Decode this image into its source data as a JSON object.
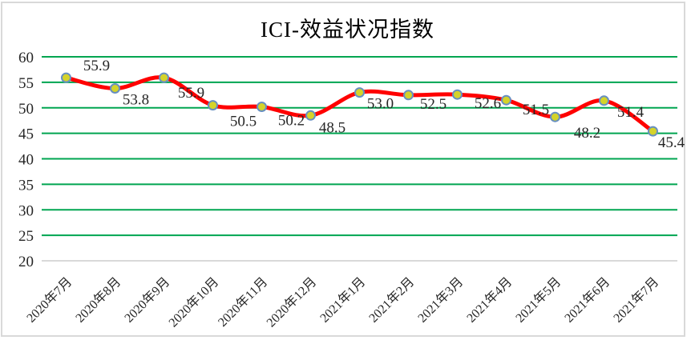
{
  "chart_data": {
    "type": "line",
    "title": "ICI-效益状况指数",
    "categories": [
      "2020年7月",
      "2020年8月",
      "2020年9月",
      "2020年10月",
      "2020年11月",
      "2020年12月",
      "2021年1月",
      "2021年2月",
      "2021年3月",
      "2021年4月",
      "2021年5月",
      "2021年6月",
      "2021年7月"
    ],
    "values": [
      55.9,
      53.8,
      55.9,
      50.5,
      50.2,
      48.5,
      53.0,
      52.5,
      52.6,
      51.5,
      48.2,
      51.4,
      45.4
    ],
    "data_labels": [
      "55.9",
      "53.8",
      "55.9",
      "50.5",
      "50.2",
      "48.5",
      "53.0",
      "52.5",
      "52.6",
      "51.5",
      "48.2",
      "51.4",
      "45.4"
    ],
    "xlabel": "",
    "ylabel": "",
    "ylim": [
      20,
      60
    ],
    "yticks": [
      20,
      25,
      30,
      35,
      40,
      45,
      50,
      55,
      60
    ],
    "grid": "horizontal",
    "legend": "none",
    "smooth_line": true,
    "marker": "circle",
    "colors": {
      "line": "#ff0000",
      "marker_fill": "#d4d32a",
      "marker_border": "#678fc1",
      "gridline": "#00a550",
      "axis_line": "#d9d9d9",
      "frame_border": "#d9d9d9",
      "label_text": "#262626",
      "title_text": "#000000"
    }
  }
}
